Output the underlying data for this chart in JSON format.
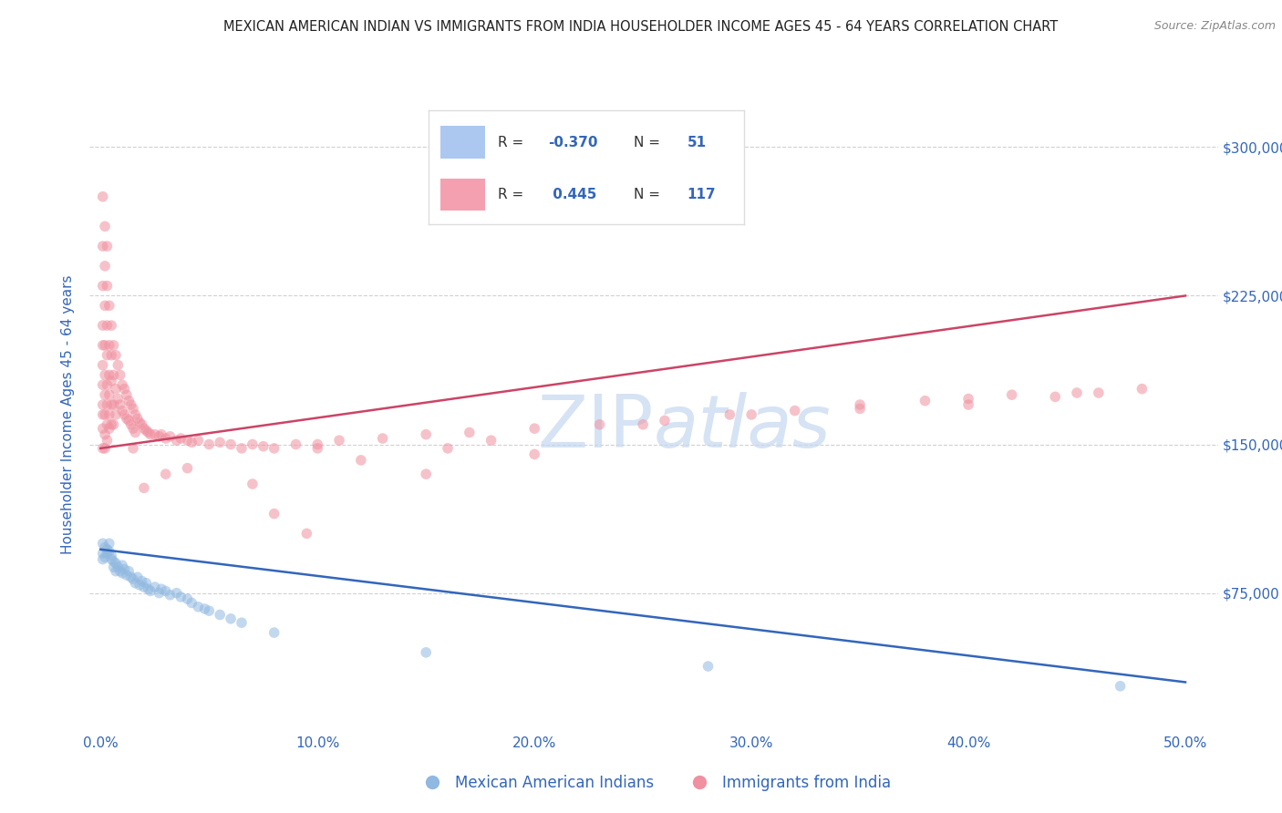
{
  "title": "MEXICAN AMERICAN INDIAN VS IMMIGRANTS FROM INDIA HOUSEHOLDER INCOME AGES 45 - 64 YEARS CORRELATION CHART",
  "source": "Source: ZipAtlas.com",
  "xlabel_ticks": [
    "0.0%",
    "10.0%",
    "20.0%",
    "30.0%",
    "40.0%",
    "50.0%"
  ],
  "xlabel_values": [
    0.0,
    0.1,
    0.2,
    0.3,
    0.4,
    0.5
  ],
  "ylabel_ticks": [
    "$75,000",
    "$150,000",
    "$225,000",
    "$300,000"
  ],
  "ylabel_values": [
    75000,
    150000,
    225000,
    300000
  ],
  "xlim": [
    -0.005,
    0.515
  ],
  "ylim": [
    5000,
    325000
  ],
  "ylabel": "Householder Income Ages 45 - 64 years",
  "legend_labels": [
    "Mexican American Indians",
    "Immigrants from India"
  ],
  "blue_scatter": [
    [
      0.001,
      100000
    ],
    [
      0.001,
      95000
    ],
    [
      0.001,
      92000
    ],
    [
      0.002,
      98000
    ],
    [
      0.002,
      93000
    ],
    [
      0.003,
      97000
    ],
    [
      0.003,
      95000
    ],
    [
      0.004,
      100000
    ],
    [
      0.004,
      96000
    ],
    [
      0.005,
      94000
    ],
    [
      0.005,
      92000
    ],
    [
      0.006,
      91000
    ],
    [
      0.006,
      88000
    ],
    [
      0.007,
      90000
    ],
    [
      0.007,
      86000
    ],
    [
      0.008,
      88000
    ],
    [
      0.009,
      86000
    ],
    [
      0.01,
      89000
    ],
    [
      0.01,
      85000
    ],
    [
      0.011,
      87000
    ],
    [
      0.012,
      84000
    ],
    [
      0.013,
      86000
    ],
    [
      0.014,
      83000
    ],
    [
      0.015,
      82000
    ],
    [
      0.016,
      80000
    ],
    [
      0.017,
      83000
    ],
    [
      0.018,
      79000
    ],
    [
      0.019,
      81000
    ],
    [
      0.02,
      78000
    ],
    [
      0.021,
      80000
    ],
    [
      0.022,
      77000
    ],
    [
      0.023,
      76000
    ],
    [
      0.025,
      78000
    ],
    [
      0.027,
      75000
    ],
    [
      0.028,
      77000
    ],
    [
      0.03,
      76000
    ],
    [
      0.032,
      74000
    ],
    [
      0.035,
      75000
    ],
    [
      0.037,
      73000
    ],
    [
      0.04,
      72000
    ],
    [
      0.042,
      70000
    ],
    [
      0.045,
      68000
    ],
    [
      0.048,
      67000
    ],
    [
      0.05,
      66000
    ],
    [
      0.055,
      64000
    ],
    [
      0.06,
      62000
    ],
    [
      0.065,
      60000
    ],
    [
      0.08,
      55000
    ],
    [
      0.15,
      45000
    ],
    [
      0.28,
      38000
    ],
    [
      0.47,
      28000
    ]
  ],
  "pink_scatter": [
    [
      0.001,
      275000
    ],
    [
      0.001,
      250000
    ],
    [
      0.001,
      230000
    ],
    [
      0.001,
      210000
    ],
    [
      0.001,
      200000
    ],
    [
      0.001,
      190000
    ],
    [
      0.001,
      180000
    ],
    [
      0.001,
      170000
    ],
    [
      0.001,
      165000
    ],
    [
      0.001,
      158000
    ],
    [
      0.001,
      148000
    ],
    [
      0.002,
      260000
    ],
    [
      0.002,
      240000
    ],
    [
      0.002,
      220000
    ],
    [
      0.002,
      200000
    ],
    [
      0.002,
      185000
    ],
    [
      0.002,
      175000
    ],
    [
      0.002,
      165000
    ],
    [
      0.002,
      155000
    ],
    [
      0.002,
      148000
    ],
    [
      0.003,
      250000
    ],
    [
      0.003,
      230000
    ],
    [
      0.003,
      210000
    ],
    [
      0.003,
      195000
    ],
    [
      0.003,
      180000
    ],
    [
      0.003,
      170000
    ],
    [
      0.003,
      160000
    ],
    [
      0.003,
      152000
    ],
    [
      0.004,
      220000
    ],
    [
      0.004,
      200000
    ],
    [
      0.004,
      185000
    ],
    [
      0.004,
      175000
    ],
    [
      0.004,
      165000
    ],
    [
      0.004,
      158000
    ],
    [
      0.005,
      210000
    ],
    [
      0.005,
      195000
    ],
    [
      0.005,
      182000
    ],
    [
      0.005,
      170000
    ],
    [
      0.005,
      160000
    ],
    [
      0.006,
      200000
    ],
    [
      0.006,
      185000
    ],
    [
      0.006,
      170000
    ],
    [
      0.006,
      160000
    ],
    [
      0.007,
      195000
    ],
    [
      0.007,
      178000
    ],
    [
      0.007,
      165000
    ],
    [
      0.008,
      190000
    ],
    [
      0.008,
      173000
    ],
    [
      0.009,
      185000
    ],
    [
      0.009,
      170000
    ],
    [
      0.01,
      180000
    ],
    [
      0.01,
      167000
    ],
    [
      0.011,
      178000
    ],
    [
      0.011,
      165000
    ],
    [
      0.012,
      175000
    ],
    [
      0.012,
      163000
    ],
    [
      0.013,
      172000
    ],
    [
      0.013,
      162000
    ],
    [
      0.014,
      170000
    ],
    [
      0.014,
      160000
    ],
    [
      0.015,
      168000
    ],
    [
      0.015,
      158000
    ],
    [
      0.016,
      165000
    ],
    [
      0.016,
      156000
    ],
    [
      0.017,
      163000
    ],
    [
      0.018,
      161000
    ],
    [
      0.019,
      160000
    ],
    [
      0.02,
      158000
    ],
    [
      0.021,
      157000
    ],
    [
      0.022,
      156000
    ],
    [
      0.023,
      155000
    ],
    [
      0.025,
      155000
    ],
    [
      0.027,
      154000
    ],
    [
      0.028,
      155000
    ],
    [
      0.03,
      153000
    ],
    [
      0.032,
      154000
    ],
    [
      0.035,
      152000
    ],
    [
      0.037,
      153000
    ],
    [
      0.04,
      152000
    ],
    [
      0.042,
      151000
    ],
    [
      0.045,
      152000
    ],
    [
      0.05,
      150000
    ],
    [
      0.055,
      151000
    ],
    [
      0.06,
      150000
    ],
    [
      0.065,
      148000
    ],
    [
      0.07,
      150000
    ],
    [
      0.075,
      149000
    ],
    [
      0.08,
      148000
    ],
    [
      0.09,
      150000
    ],
    [
      0.1,
      150000
    ],
    [
      0.11,
      152000
    ],
    [
      0.13,
      153000
    ],
    [
      0.15,
      155000
    ],
    [
      0.17,
      156000
    ],
    [
      0.2,
      158000
    ],
    [
      0.23,
      160000
    ],
    [
      0.26,
      162000
    ],
    [
      0.29,
      165000
    ],
    [
      0.32,
      167000
    ],
    [
      0.35,
      170000
    ],
    [
      0.38,
      172000
    ],
    [
      0.4,
      173000
    ],
    [
      0.42,
      175000
    ],
    [
      0.45,
      176000
    ],
    [
      0.48,
      178000
    ],
    [
      0.07,
      130000
    ],
    [
      0.08,
      115000
    ],
    [
      0.095,
      105000
    ],
    [
      0.15,
      135000
    ],
    [
      0.2,
      145000
    ],
    [
      0.1,
      148000
    ],
    [
      0.12,
      142000
    ],
    [
      0.16,
      148000
    ],
    [
      0.18,
      152000
    ],
    [
      0.25,
      160000
    ],
    [
      0.3,
      165000
    ],
    [
      0.35,
      168000
    ],
    [
      0.4,
      170000
    ],
    [
      0.44,
      174000
    ],
    [
      0.46,
      176000
    ],
    [
      0.015,
      148000
    ],
    [
      0.02,
      128000
    ],
    [
      0.03,
      135000
    ],
    [
      0.04,
      138000
    ]
  ],
  "blue_line_x": [
    0.0,
    0.5
  ],
  "blue_line_y0": 97000,
  "blue_line_y1": 30000,
  "pink_line_x": [
    0.0,
    0.5
  ],
  "pink_line_y0": 148000,
  "pink_line_y1": 225000,
  "grid_color": "#cccccc",
  "bg_color": "#ffffff",
  "scatter_alpha": 0.55,
  "scatter_size": 70,
  "blue_color": "#90b8e0",
  "pink_color": "#f090a0",
  "blue_line_color": "#3366bb",
  "pink_line_color": "#cc4466",
  "title_color": "#222222",
  "axis_label_color": "#3366bb",
  "tick_label_color": "#3366bb",
  "source_color": "#888888",
  "watermark_color": "#c5d8f0",
  "legend_box_color": "#dddddd",
  "legend_R_color": "#333333",
  "legend_val_color": "#3366bb"
}
